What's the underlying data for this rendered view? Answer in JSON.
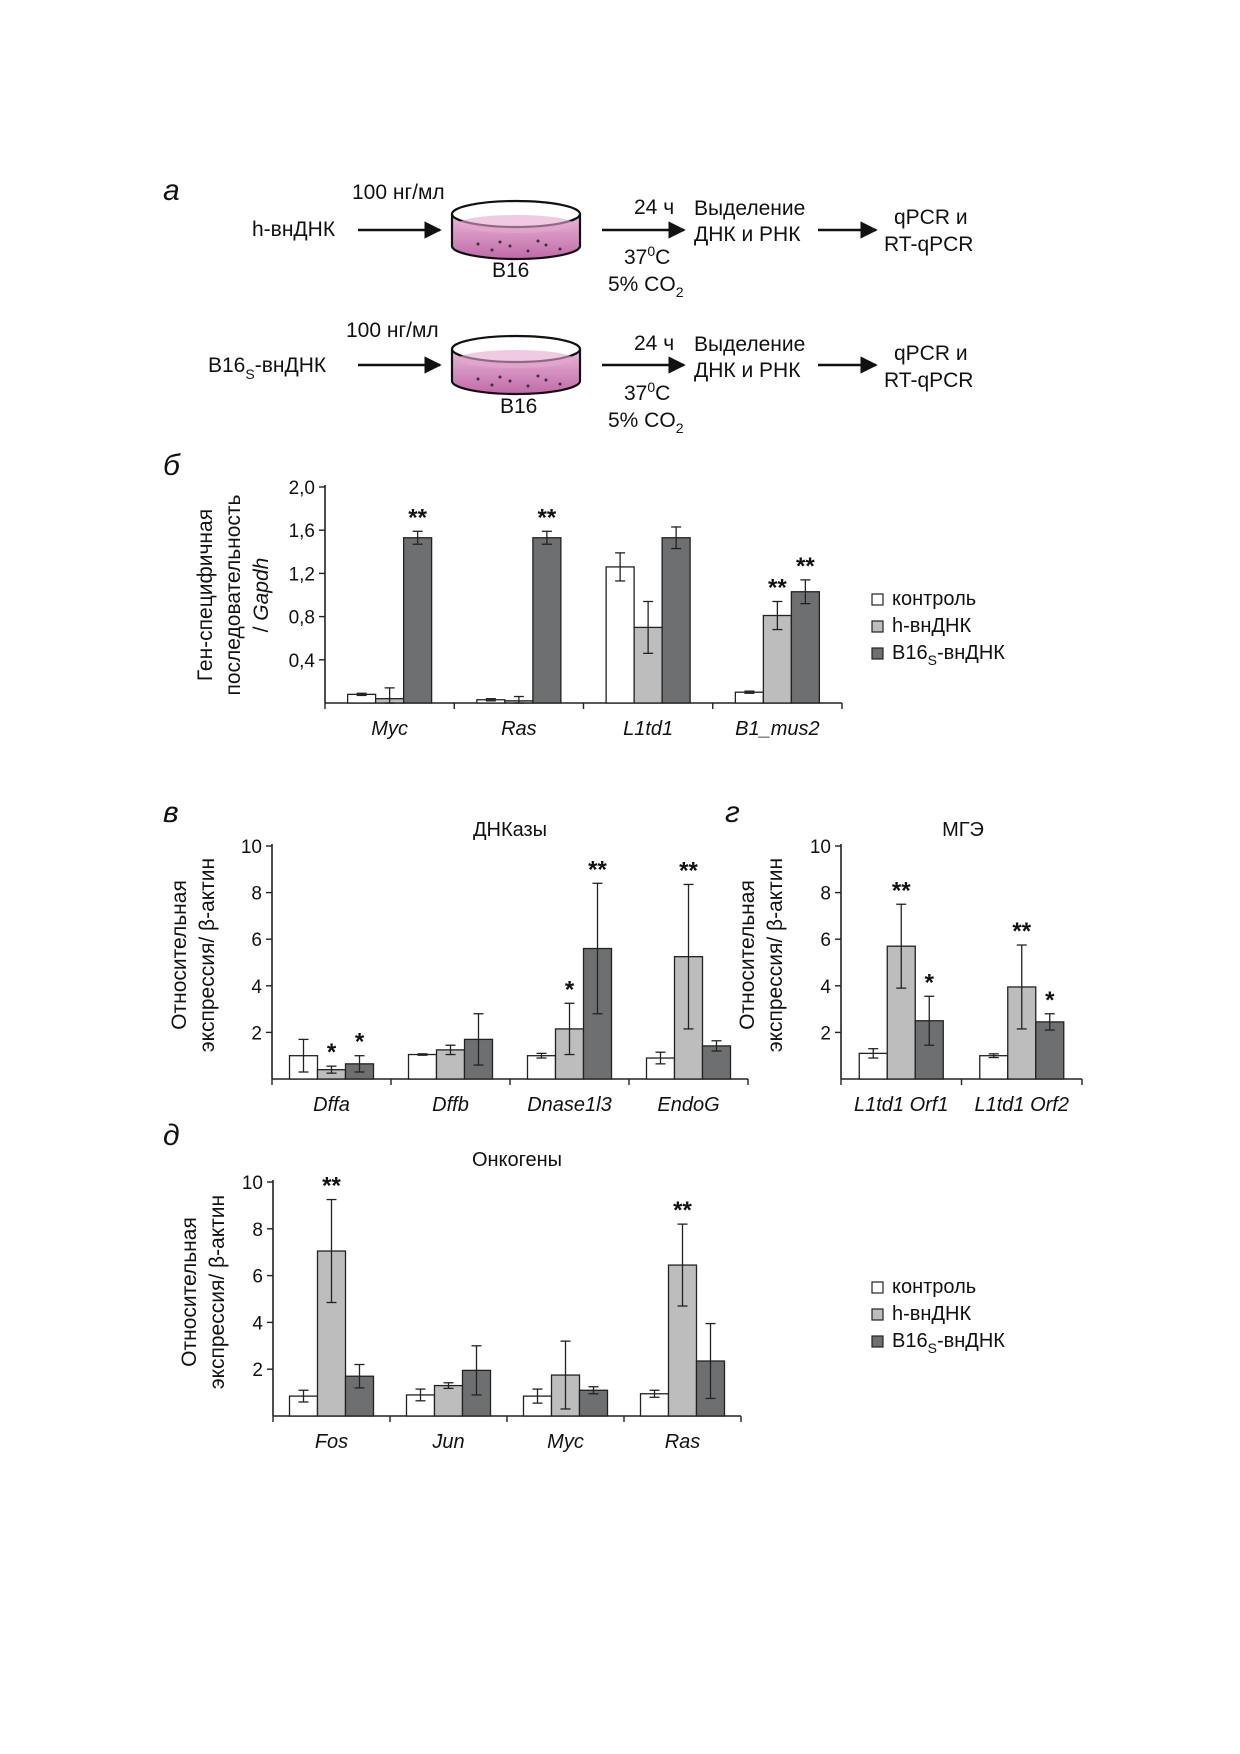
{
  "panel_a": {
    "letter": "а",
    "rows": [
      {
        "input": "h-внДНК",
        "input_sub": "",
        "input_after": "",
        "dose": "100 нг/мл",
        "cells": "B16",
        "time": "24 ч",
        "temp_base": "37",
        "temp_sup": "0",
        "temp_unit": "C",
        "co2_base": "5% CO",
        "co2_sub": "2",
        "step1_l1": "Выделение",
        "step1_l2": "ДНК и РНК",
        "step2_l1": "qPCR и",
        "step2_l2": "RT-qPCR"
      },
      {
        "input": "B16",
        "input_sub": "S",
        "input_after": "-внДНК",
        "dose": "100 нг/мл",
        "cells": "B16",
        "time": "24 ч",
        "temp_base": "37",
        "temp_sup": "0",
        "temp_unit": "C",
        "co2_base": "5% CO",
        "co2_sub": "2",
        "step1_l1": "Выделение",
        "step1_l2": "ДНК и РНК",
        "step2_l1": "qPCR и",
        "step2_l2": "RT-qPCR"
      }
    ]
  },
  "legend": {
    "entries": [
      {
        "name": "контроль",
        "sub": "",
        "after": "",
        "color": "#ffffff"
      },
      {
        "name": "h-внДНК",
        "sub": "",
        "after": "",
        "color": "#bdbdbd"
      },
      {
        "name": "B16",
        "sub": "S",
        "after": "-внДНК",
        "color": "#6d6f71"
      }
    ]
  },
  "chart_data": [
    {
      "id": "b",
      "letter": "б",
      "type": "bar",
      "title": "",
      "ylabel_lines": [
        "Ген-специфичная",
        "последовательность",
        "/ Gapdh"
      ],
      "ylim": [
        0,
        2.0
      ],
      "yticks": [
        "0,4",
        "0,8",
        "1,2",
        "1,6",
        "2,0"
      ],
      "ytick_values": [
        0.4,
        0.8,
        1.2,
        1.6,
        2.0
      ],
      "categories": [
        "Myc",
        "Ras",
        "L1td1",
        "B1_mus2"
      ],
      "series": [
        {
          "name": "контроль",
          "values": [
            0.08,
            0.03,
            1.26,
            0.1
          ],
          "errors": [
            0.01,
            0.01,
            0.13,
            0.01
          ]
        },
        {
          "name": "h-внДНК",
          "values": [
            0.04,
            0.02,
            0.7,
            0.81
          ],
          "errors": [
            0.1,
            0.04,
            0.24,
            0.13
          ]
        },
        {
          "name": "B16S-внДНК",
          "values": [
            1.53,
            1.53,
            1.53,
            1.03
          ],
          "errors": [
            0.06,
            0.06,
            0.1,
            0.11
          ]
        }
      ],
      "annotations": [
        {
          "category": 0,
          "series": 2,
          "text": "**"
        },
        {
          "category": 1,
          "series": 2,
          "text": "**"
        },
        {
          "category": 3,
          "series": 1,
          "text": "**"
        },
        {
          "category": 3,
          "series": 2,
          "text": "**"
        }
      ],
      "legend": "right"
    },
    {
      "id": "v",
      "letter": "в",
      "type": "bar",
      "title": "ДНКазы",
      "ylabel_lines": [
        "Относительная",
        "экспрессия/ β-актин"
      ],
      "ylim": [
        0,
        10
      ],
      "yticks": [
        "2",
        "4",
        "6",
        "8",
        "10"
      ],
      "ytick_values": [
        2,
        4,
        6,
        8,
        10
      ],
      "categories": [
        "Dffa",
        "Dffb",
        "Dnase1l3",
        "EndoG"
      ],
      "series": [
        {
          "name": "контроль",
          "values": [
            1.0,
            1.05,
            1.0,
            0.9
          ],
          "errors": [
            0.7,
            0.03,
            0.1,
            0.25
          ]
        },
        {
          "name": "h-внДНК",
          "values": [
            0.4,
            1.25,
            2.15,
            5.25
          ],
          "errors": [
            0.15,
            0.2,
            1.1,
            3.1
          ]
        },
        {
          "name": "B16S-внДНК",
          "values": [
            0.65,
            1.7,
            5.6,
            1.42
          ],
          "errors": [
            0.35,
            1.1,
            2.8,
            0.22
          ]
        }
      ],
      "annotations": [
        {
          "category": 0,
          "series": 1,
          "text": "*"
        },
        {
          "category": 0,
          "series": 2,
          "text": "*"
        },
        {
          "category": 2,
          "series": 1,
          "text": "*"
        },
        {
          "category": 2,
          "series": 2,
          "text": "**"
        },
        {
          "category": 3,
          "series": 1,
          "text": "**"
        }
      ]
    },
    {
      "id": "g",
      "letter": "г",
      "type": "bar",
      "title": "МГЭ",
      "ylabel_lines": [
        "Относительная",
        "экспрессия/ β-актин"
      ],
      "ylim": [
        0,
        10
      ],
      "yticks": [
        "2",
        "4",
        "6",
        "8",
        "10"
      ],
      "ytick_values": [
        2,
        4,
        6,
        8,
        10
      ],
      "categories": [
        "L1td1 Orf1",
        "L1td1 Orf2"
      ],
      "series": [
        {
          "name": "контроль",
          "values": [
            1.1,
            1.0
          ],
          "errors": [
            0.2,
            0.08
          ]
        },
        {
          "name": "h-внДНК",
          "values": [
            5.7,
            3.95
          ],
          "errors": [
            1.8,
            1.8
          ]
        },
        {
          "name": "B16S-внДНК",
          "values": [
            2.5,
            2.45
          ],
          "errors": [
            1.05,
            0.35
          ]
        }
      ],
      "annotations": [
        {
          "category": 0,
          "series": 1,
          "text": "**"
        },
        {
          "category": 0,
          "series": 2,
          "text": "*"
        },
        {
          "category": 1,
          "series": 1,
          "text": "**"
        },
        {
          "category": 1,
          "series": 2,
          "text": "*"
        }
      ]
    },
    {
      "id": "d",
      "letter": "д",
      "type": "bar",
      "title": "Онкогены",
      "ylabel_lines": [
        "Относительная",
        "экспрессия/ β-актин"
      ],
      "ylim": [
        0,
        10
      ],
      "yticks": [
        "2",
        "4",
        "6",
        "8",
        "10"
      ],
      "ytick_values": [
        2,
        4,
        6,
        8,
        10
      ],
      "categories": [
        "Fos",
        "Jun",
        "Myc",
        "Ras"
      ],
      "series": [
        {
          "name": "контроль",
          "values": [
            0.85,
            0.9,
            0.85,
            0.95
          ],
          "errors": [
            0.25,
            0.25,
            0.3,
            0.15
          ]
        },
        {
          "name": "h-внДНК",
          "values": [
            7.05,
            1.3,
            1.75,
            6.45
          ],
          "errors": [
            2.2,
            0.12,
            1.45,
            1.75
          ]
        },
        {
          "name": "B16S-внДНК",
          "values": [
            1.7,
            1.95,
            1.1,
            2.35
          ],
          "errors": [
            0.5,
            1.05,
            0.15,
            1.6
          ]
        }
      ],
      "annotations": [
        {
          "category": 0,
          "series": 1,
          "text": "**"
        },
        {
          "category": 3,
          "series": 1,
          "text": "**"
        }
      ],
      "legend": "right"
    }
  ]
}
